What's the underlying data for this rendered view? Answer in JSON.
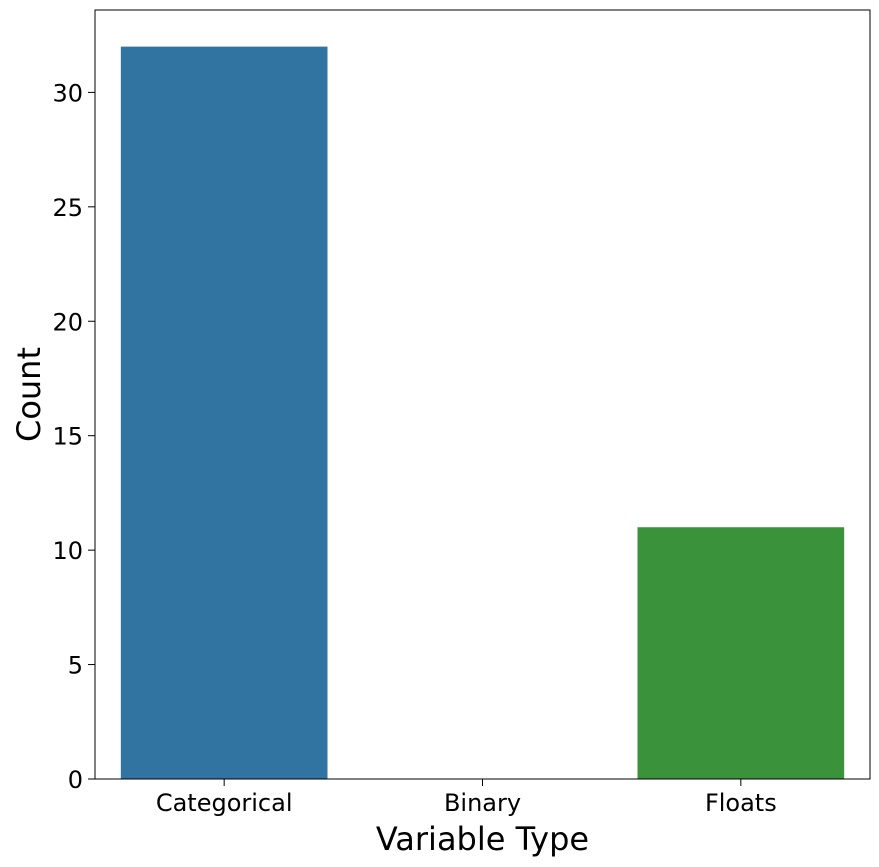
{
  "chart_data": {
    "type": "bar",
    "categories": [
      "Categorical",
      "Binary",
      "Floats"
    ],
    "values": [
      32,
      0,
      11
    ],
    "colors": [
      "#3274a1",
      "#e1812c",
      "#3a923a"
    ],
    "title": "",
    "xlabel": "Variable Type",
    "ylabel": "Count",
    "ylim": [
      0,
      33.6
    ],
    "yticks": [
      0,
      5,
      10,
      15,
      20,
      25,
      30
    ],
    "grid": false,
    "legend": false
  }
}
